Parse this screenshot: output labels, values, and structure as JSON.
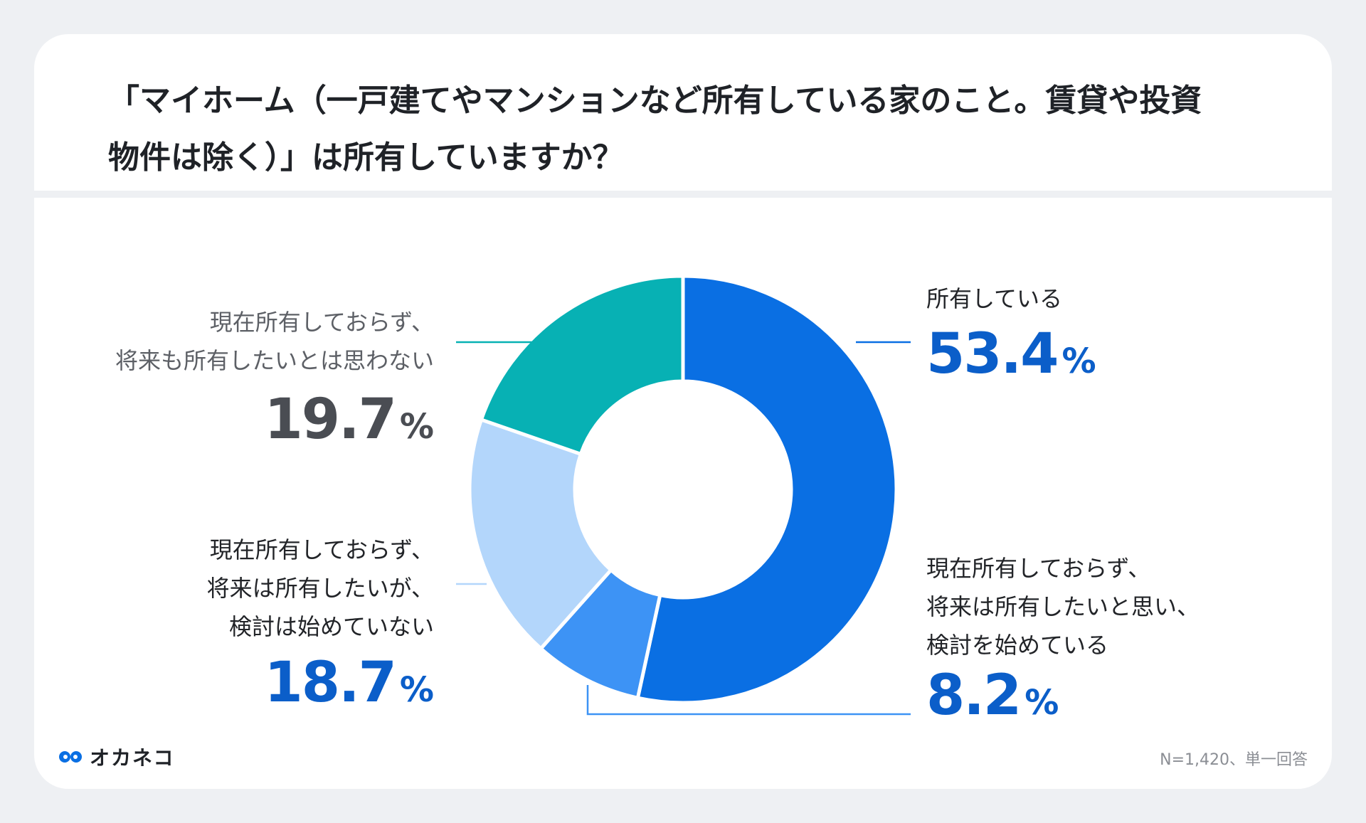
{
  "title": "「マイホーム（一戸建てやマンションなど所有している家のこと。賃貸や投資\n物件は除く）」は所有していますか？",
  "chart_data": {
    "type": "pie",
    "donut": true,
    "unit": "%",
    "slices": [
      {
        "name": "所有している",
        "value": 53.4,
        "value_label": "53.4",
        "color": "#0a6fe3"
      },
      {
        "name": "現在所有しておらず、\n将来は所有したいと思い、\n検討を始めている",
        "value": 8.2,
        "value_label": "8.2",
        "color": "#3d93f5"
      },
      {
        "name": "現在所有しておらず、\n将来は所有したいが、\n検討は始めていない",
        "value": 18.7,
        "value_label": "18.7",
        "color": "#b3d6fb"
      },
      {
        "name": "現在所有しておらず、\n将来も所有したいとは思わない",
        "value": 19.7,
        "value_label": "19.7",
        "color": "#07b1b4"
      }
    ]
  },
  "colors": {
    "blue_text": "#0b5ec9",
    "gray_text": "#4a4d53"
  },
  "brand": {
    "name": "オカネコ"
  },
  "note": "N=1,420、単一回答"
}
